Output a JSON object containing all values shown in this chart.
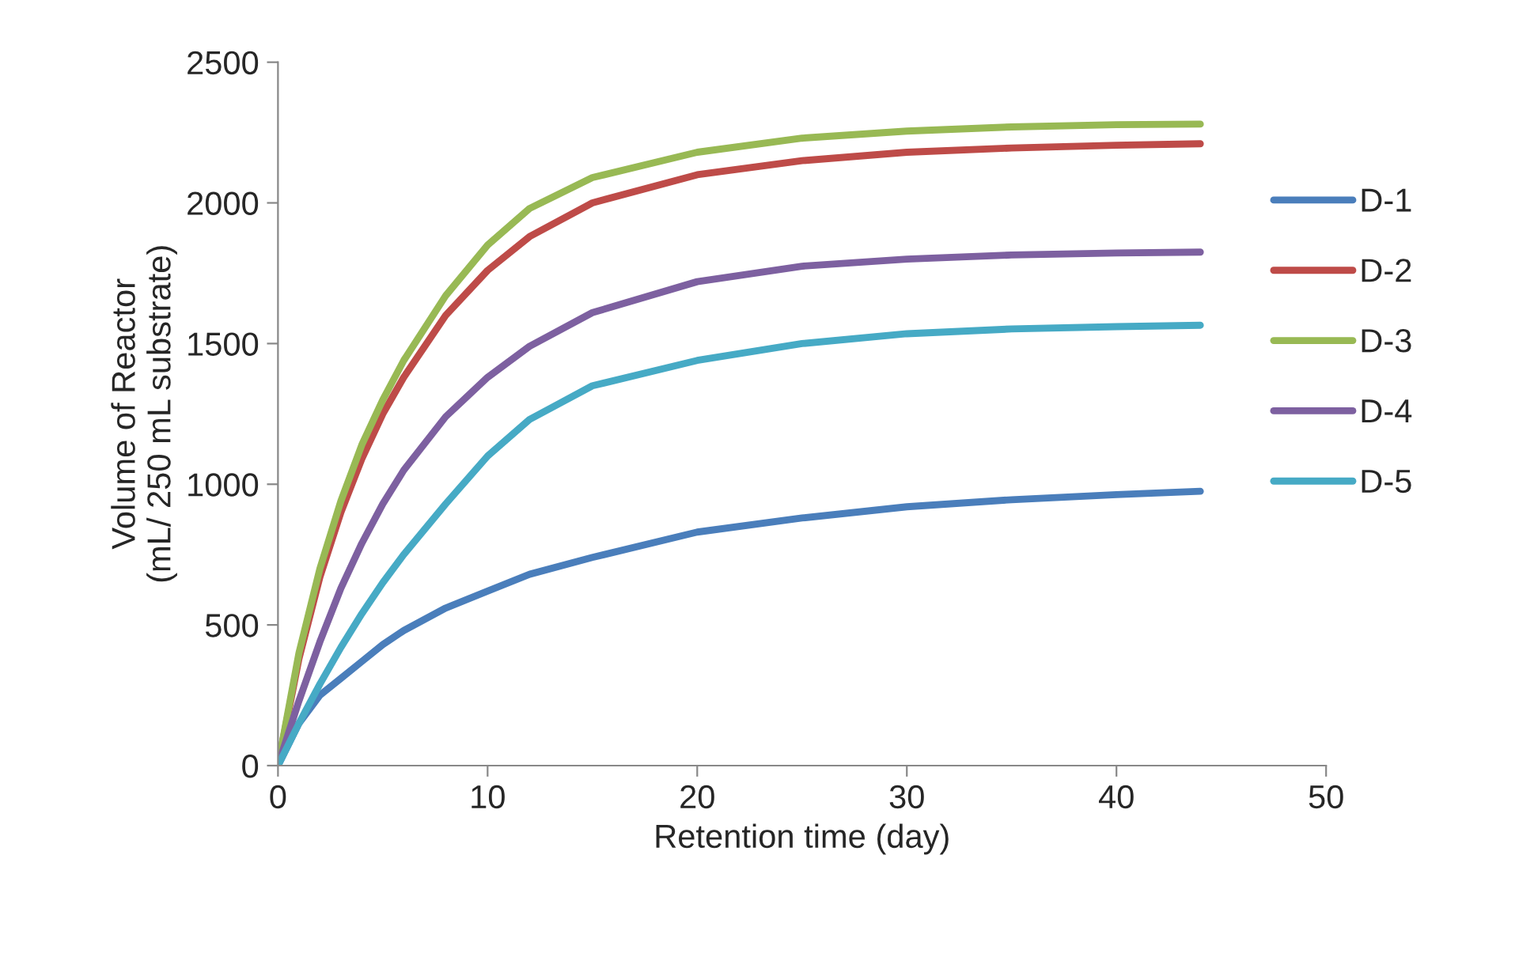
{
  "chart_data": {
    "type": "line",
    "xlabel": "Retention time (day)",
    "ylabel": "Volume of Reactor\n(mL/ 250 mL substrate)",
    "x": [
      0,
      1,
      2,
      3,
      4,
      5,
      6,
      8,
      10,
      12,
      15,
      20,
      25,
      30,
      35,
      40,
      44
    ],
    "series": [
      {
        "name": "D-1",
        "color": "#4a7ebb",
        "values": [
          0,
          150,
          250,
          310,
          370,
          430,
          480,
          560,
          620,
          680,
          740,
          830,
          880,
          920,
          945,
          963,
          975
        ]
      },
      {
        "name": "D-2",
        "color": "#be4b48",
        "values": [
          0,
          380,
          670,
          900,
          1090,
          1250,
          1380,
          1600,
          1760,
          1880,
          2000,
          2100,
          2150,
          2180,
          2195,
          2205,
          2210
        ]
      },
      {
        "name": "D-3",
        "color": "#98b954",
        "values": [
          0,
          400,
          700,
          940,
          1140,
          1300,
          1440,
          1670,
          1850,
          1980,
          2090,
          2180,
          2230,
          2255,
          2270,
          2278,
          2280
        ]
      },
      {
        "name": "D-4",
        "color": "#7d60a0",
        "values": [
          0,
          230,
          440,
          630,
          790,
          930,
          1050,
          1240,
          1380,
          1490,
          1610,
          1720,
          1775,
          1800,
          1815,
          1822,
          1825
        ]
      },
      {
        "name": "D-5",
        "color": "#46aac5",
        "values": [
          0,
          150,
          290,
          420,
          540,
          650,
          750,
          930,
          1100,
          1230,
          1350,
          1440,
          1500,
          1535,
          1552,
          1560,
          1565
        ]
      }
    ],
    "xlim": [
      0,
      50
    ],
    "xticks": [
      0,
      10,
      20,
      30,
      40,
      50
    ],
    "ylim": [
      0,
      2500
    ],
    "yticks": [
      0,
      500,
      1000,
      1500,
      2000,
      2500
    ],
    "grid": false,
    "legend": "right",
    "marker": "none",
    "line_style": "solid"
  }
}
